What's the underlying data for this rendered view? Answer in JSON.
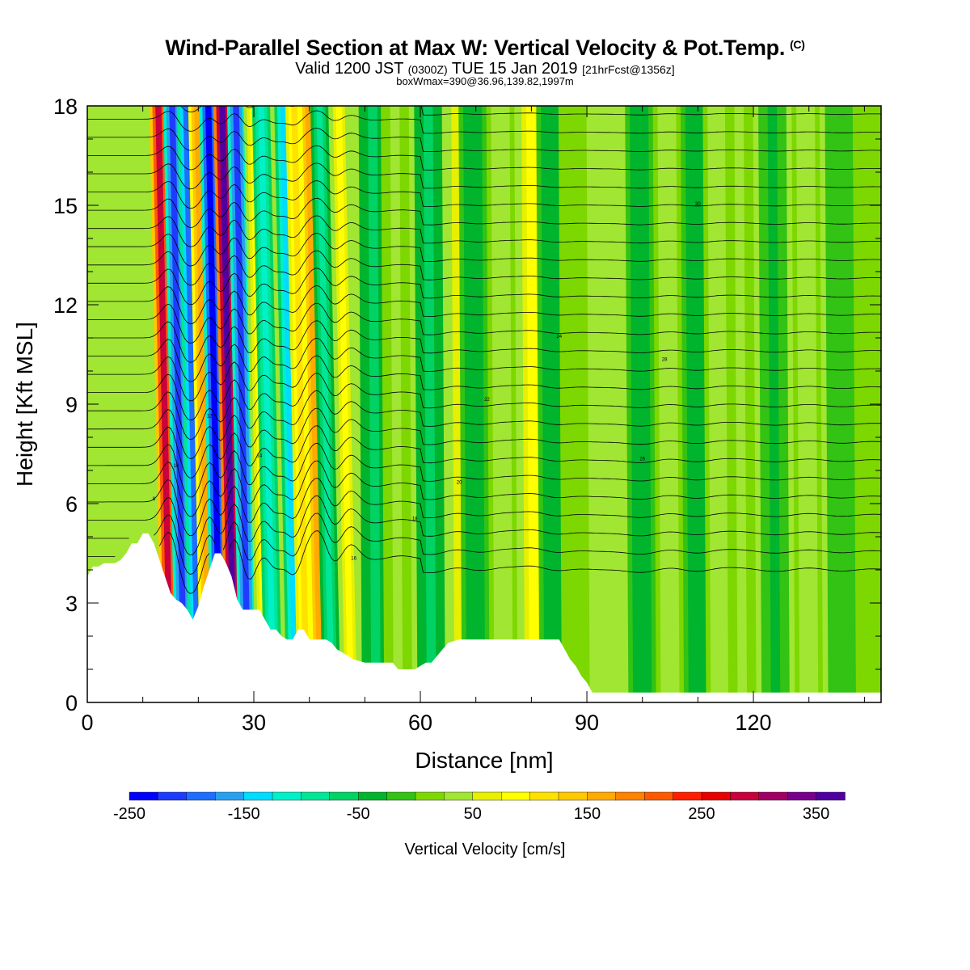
{
  "header": {
    "title": "Wind-Parallel Section at Max W: Vertical Velocity & Pot.Temp.",
    "title_mark": "(C)",
    "subtitle_valid": "Valid 1200 JST",
    "subtitle_utc": "(0300Z)",
    "subtitle_date": "TUE 15 Jan 2019",
    "subtitle_fcst": "[21hrFcst@1356z]",
    "subtitle2": "boxWmax=390@36.96,139.82,1997m"
  },
  "chart_data": {
    "type": "heatmap",
    "xlabel": "Distance [nm]",
    "ylabel": "Height [Kft MSL]",
    "xlim": [
      0,
      143
    ],
    "ylim": [
      0,
      18
    ],
    "x_ticks": [
      0,
      30,
      60,
      90,
      120
    ],
    "y_ticks": [
      0,
      3,
      6,
      9,
      12,
      15,
      18
    ],
    "colorbar": {
      "label": "Vertical Velocity [cm/s]",
      "range": [
        -250,
        375
      ],
      "step": 25,
      "tick_labels": [
        "-250",
        "-150",
        "-50",
        "50",
        "150",
        "250",
        "350"
      ],
      "colors": [
        "#0000ff",
        "#1e3cff",
        "#1e6eff",
        "#28a0f0",
        "#00dcff",
        "#00f0c8",
        "#00e696",
        "#00d264",
        "#00b42d",
        "#32c314",
        "#7dd700",
        "#a0e632",
        "#e6f000",
        "#ffff00",
        "#ffe100",
        "#ffc800",
        "#ffaa00",
        "#ff8200",
        "#ff5a00",
        "#ff1e00",
        "#e60000",
        "#c8003c",
        "#a00064",
        "#78008c",
        "#5000a0"
      ]
    },
    "terrain_kft": [
      [
        0,
        3.8
      ],
      [
        1,
        4.1
      ],
      [
        2,
        4.1
      ],
      [
        3,
        4.2
      ],
      [
        4,
        4.2
      ],
      [
        5,
        4.2
      ],
      [
        6,
        4.3
      ],
      [
        7,
        4.5
      ],
      [
        8,
        4.8
      ],
      [
        9,
        4.8
      ],
      [
        10,
        5.1
      ],
      [
        11,
        5.1
      ],
      [
        12,
        4.8
      ],
      [
        13,
        4.3
      ],
      [
        14,
        3.8
      ],
      [
        15,
        3.3
      ],
      [
        16,
        3.1
      ],
      [
        17,
        3.0
      ],
      [
        18,
        2.8
      ],
      [
        19,
        2.5
      ],
      [
        20,
        2.9
      ],
      [
        21,
        3.5
      ],
      [
        22,
        4.0
      ],
      [
        23,
        4.5
      ],
      [
        24,
        4.5
      ],
      [
        25,
        4.2
      ],
      [
        26,
        3.8
      ],
      [
        27,
        3.1
      ],
      [
        28,
        2.8
      ],
      [
        30,
        2.8
      ],
      [
        31,
        2.8
      ],
      [
        32,
        2.5
      ],
      [
        33,
        2.2
      ],
      [
        34,
        2.2
      ],
      [
        35,
        2.0
      ],
      [
        36,
        1.9
      ],
      [
        37,
        1.9
      ],
      [
        38,
        2.2
      ],
      [
        39,
        2.2
      ],
      [
        40,
        1.9
      ],
      [
        41,
        1.9
      ],
      [
        43,
        1.9
      ],
      [
        44,
        1.8
      ],
      [
        45,
        1.6
      ],
      [
        46,
        1.5
      ],
      [
        47,
        1.4
      ],
      [
        48,
        1.3
      ],
      [
        50,
        1.2
      ],
      [
        51,
        1.2
      ],
      [
        53,
        1.2
      ],
      [
        54,
        1.2
      ],
      [
        55,
        1.2
      ],
      [
        56,
        1.0
      ],
      [
        58,
        1.0
      ],
      [
        59,
        1.0
      ],
      [
        60,
        1.1
      ],
      [
        61,
        1.2
      ],
      [
        62,
        1.2
      ],
      [
        63,
        1.4
      ],
      [
        64,
        1.6
      ],
      [
        65,
        1.8
      ],
      [
        67,
        1.9
      ],
      [
        70,
        1.9
      ],
      [
        75,
        1.9
      ],
      [
        80,
        1.9
      ],
      [
        85,
        1.9
      ],
      [
        86,
        1.6
      ],
      [
        87,
        1.3
      ],
      [
        88,
        1.1
      ],
      [
        89,
        0.8
      ],
      [
        90,
        0.6
      ],
      [
        91,
        0.3
      ],
      [
        92,
        0.3
      ],
      [
        100,
        0.3
      ],
      [
        110,
        0.3
      ],
      [
        120,
        0.3
      ],
      [
        130,
        0.3
      ],
      [
        140,
        0.3
      ],
      [
        143,
        0.3
      ]
    ],
    "updraft_bands": [
      {
        "x": 1,
        "w": 80,
        "type": "line_pair"
      },
      {
        "x": 15,
        "w": 280
      },
      {
        "x": 17.5,
        "w": -210
      },
      {
        "x": 20,
        "w": -200
      },
      {
        "x": 22,
        "w": 170
      },
      {
        "x": 24,
        "w": -250
      },
      {
        "x": 26.5,
        "w": 390
      },
      {
        "x": 29,
        "w": -220
      },
      {
        "x": 32,
        "w": 75
      },
      {
        "x": 33.5,
        "w": -110
      },
      {
        "x": 37.5,
        "w": -150
      },
      {
        "x": 39.5,
        "w": 100
      },
      {
        "x": 42,
        "w": 170
      },
      {
        "x": 44,
        "w": -80
      },
      {
        "x": 47.5,
        "w": 90
      },
      {
        "x": 52,
        "w": -60
      },
      {
        "x": 56,
        "w": 30
      },
      {
        "x": 62,
        "w": -60
      },
      {
        "x": 67,
        "w": 60
      },
      {
        "x": 70,
        "w": -40
      },
      {
        "x": 75,
        "w": 40
      },
      {
        "x": 80.5,
        "w": 75
      },
      {
        "x": 84,
        "w": -40
      },
      {
        "x": 88,
        "w": 20
      },
      {
        "x": 100,
        "w": -50
      },
      {
        "x": 105,
        "w": 40
      },
      {
        "x": 110,
        "w": -40
      },
      {
        "x": 114,
        "w": 35
      },
      {
        "x": 118,
        "w": 25
      },
      {
        "x": 124,
        "w": -30
      },
      {
        "x": 130,
        "w": 35
      },
      {
        "x": 136,
        "w": -25
      },
      {
        "x": 141,
        "w": 20
      }
    ],
    "isentrope_labels": [
      "8",
      "10",
      "12",
      "14",
      "16",
      "18",
      "20",
      "22",
      "24",
      "26",
      "28",
      "30"
    ]
  }
}
